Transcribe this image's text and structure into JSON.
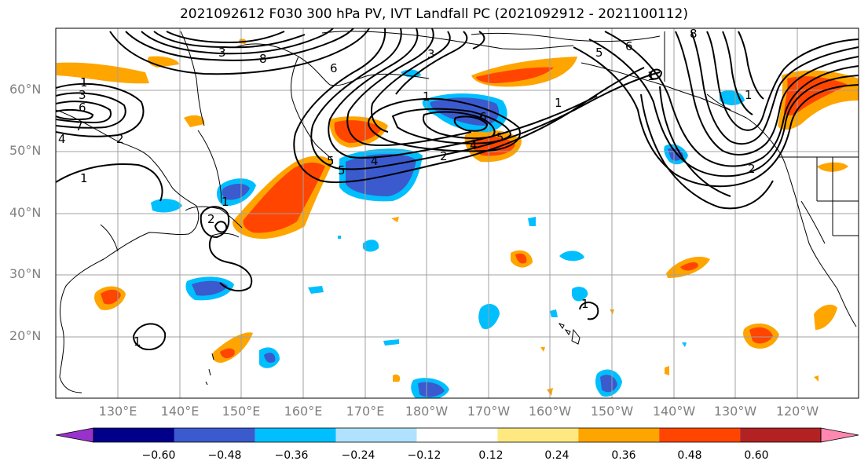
{
  "title": "2021092612 F030 300 hPa PV, IVT Landfall PC (2021092912 - 2021100112)",
  "lat_labels": [
    "60°N",
    "50°N",
    "40°N",
    "30°N",
    "20°N"
  ],
  "lon_labels": [
    "130°E",
    "140°E",
    "150°E",
    "160°E",
    "170°E",
    "180°W",
    "170°W",
    "160°W",
    "150°W",
    "140°W",
    "130°W",
    "120°W"
  ],
  "colorbar": {
    "ticks": [
      "−0.60",
      "−0.48",
      "−0.36",
      "−0.24",
      "−0.12",
      "0.12",
      "0.24",
      "0.36",
      "0.48",
      "0.60"
    ],
    "colors": [
      "#9932cc",
      "#00008b",
      "#3a5acd",
      "#00bfff",
      "#b0e2ff",
      "#ffffff",
      "#ffe880",
      "#ffa500",
      "#ff4500",
      "#b22222",
      "#ff88b0"
    ]
  },
  "contour_labels": [
    "1",
    "7",
    "8",
    "3",
    "6",
    "5",
    "4",
    "2",
    "5",
    "4",
    "2",
    "6",
    "1",
    "5",
    "4",
    "3",
    "5",
    "6",
    "3",
    "8",
    "2",
    "1",
    "6",
    "1",
    "1",
    "1",
    "1",
    "2",
    "1",
    "1"
  ],
  "colors": {
    "pv_contour": "#000000",
    "coast": "#000000",
    "grid": "#a0a0a0"
  }
}
